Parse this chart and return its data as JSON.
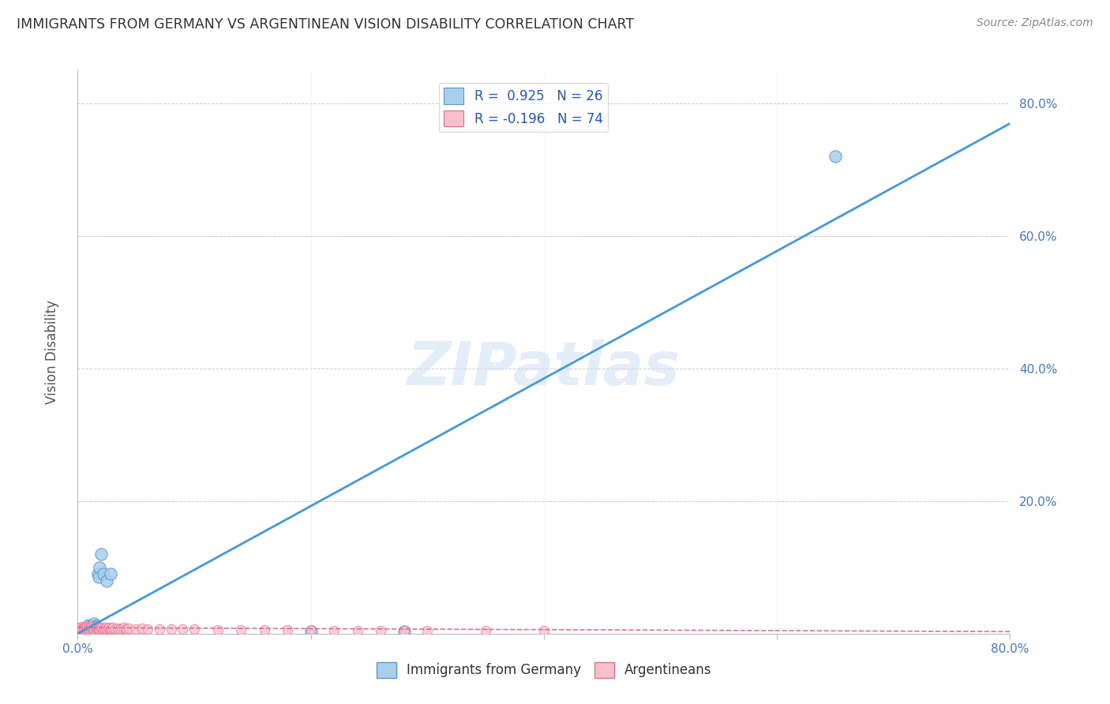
{
  "title": "IMMIGRANTS FROM GERMANY VS ARGENTINEAN VISION DISABILITY CORRELATION CHART",
  "source": "Source: ZipAtlas.com",
  "ylabel": "Vision Disability",
  "xlim": [
    0,
    0.8
  ],
  "ylim": [
    0,
    0.85
  ],
  "xtick_vals": [
    0.0,
    0.2,
    0.4,
    0.6,
    0.8
  ],
  "ytick_vals": [
    0.0,
    0.2,
    0.4,
    0.6,
    0.8
  ],
  "xtick_labels_bottom": [
    "0.0%",
    "",
    "",
    "",
    "80.0%"
  ],
  "ytick_labels_right": [
    "",
    "20.0%",
    "40.0%",
    "60.0%",
    "80.0%"
  ],
  "grid_color": "#cccccc",
  "background_color": "#ffffff",
  "watermark": "ZIPatlas",
  "blue_R": 0.925,
  "blue_N": 26,
  "pink_R": -0.196,
  "pink_N": 74,
  "blue_fill_color": "#aacfed",
  "blue_edge_color": "#5599cc",
  "pink_fill_color": "#f9c0cc",
  "pink_edge_color": "#e07090",
  "blue_line_color": "#4499dd",
  "pink_line_color": "#e07090",
  "tick_label_color": "#4477cc",
  "title_color": "#333333",
  "source_color": "#888888",
  "ylabel_color": "#555555",
  "legend_label_color": "#333333",
  "legend_R_color": "#2255cc",
  "blue_scatter_x": [
    0.003,
    0.005,
    0.006,
    0.007,
    0.008,
    0.009,
    0.01,
    0.011,
    0.012,
    0.013,
    0.014,
    0.015,
    0.016,
    0.017,
    0.018,
    0.019,
    0.02,
    0.022,
    0.025,
    0.028,
    0.03,
    0.032,
    0.035,
    0.2,
    0.28,
    0.65
  ],
  "blue_scatter_y": [
    0.004,
    0.003,
    0.005,
    0.004,
    0.003,
    0.013,
    0.005,
    0.012,
    0.01,
    0.008,
    0.015,
    0.012,
    0.01,
    0.09,
    0.085,
    0.1,
    0.12,
    0.09,
    0.08,
    0.09,
    0.005,
    0.005,
    0.003,
    0.003,
    0.003,
    0.72
  ],
  "pink_scatter_x": [
    0.001,
    0.002,
    0.002,
    0.003,
    0.003,
    0.004,
    0.004,
    0.005,
    0.005,
    0.006,
    0.006,
    0.007,
    0.007,
    0.008,
    0.008,
    0.009,
    0.009,
    0.01,
    0.01,
    0.011,
    0.011,
    0.012,
    0.012,
    0.013,
    0.013,
    0.014,
    0.014,
    0.015,
    0.015,
    0.016,
    0.016,
    0.017,
    0.017,
    0.018,
    0.018,
    0.019,
    0.019,
    0.02,
    0.021,
    0.022,
    0.023,
    0.024,
    0.025,
    0.026,
    0.027,
    0.028,
    0.029,
    0.03,
    0.032,
    0.034,
    0.036,
    0.038,
    0.04,
    0.042,
    0.044,
    0.05,
    0.055,
    0.06,
    0.07,
    0.08,
    0.09,
    0.1,
    0.12,
    0.14,
    0.16,
    0.18,
    0.2,
    0.22,
    0.24,
    0.26,
    0.28,
    0.3,
    0.35,
    0.4
  ],
  "pink_scatter_y": [
    0.007,
    0.006,
    0.009,
    0.007,
    0.01,
    0.008,
    0.006,
    0.009,
    0.007,
    0.01,
    0.008,
    0.009,
    0.007,
    0.008,
    0.01,
    0.007,
    0.009,
    0.008,
    0.006,
    0.009,
    0.007,
    0.008,
    0.01,
    0.007,
    0.009,
    0.008,
    0.006,
    0.009,
    0.007,
    0.01,
    0.008,
    0.007,
    0.009,
    0.008,
    0.006,
    0.009,
    0.007,
    0.008,
    0.009,
    0.007,
    0.008,
    0.009,
    0.007,
    0.008,
    0.009,
    0.007,
    0.008,
    0.009,
    0.007,
    0.008,
    0.007,
    0.008,
    0.009,
    0.007,
    0.008,
    0.007,
    0.008,
    0.007,
    0.007,
    0.007,
    0.007,
    0.007,
    0.006,
    0.006,
    0.006,
    0.006,
    0.006,
    0.005,
    0.005,
    0.005,
    0.005,
    0.005,
    0.004,
    0.004
  ],
  "blue_line_x": [
    0.0,
    0.8
  ],
  "blue_line_y": [
    0.0,
    0.77
  ],
  "pink_line_x": [
    0.0,
    0.8
  ],
  "pink_line_y": [
    0.009,
    0.003
  ]
}
